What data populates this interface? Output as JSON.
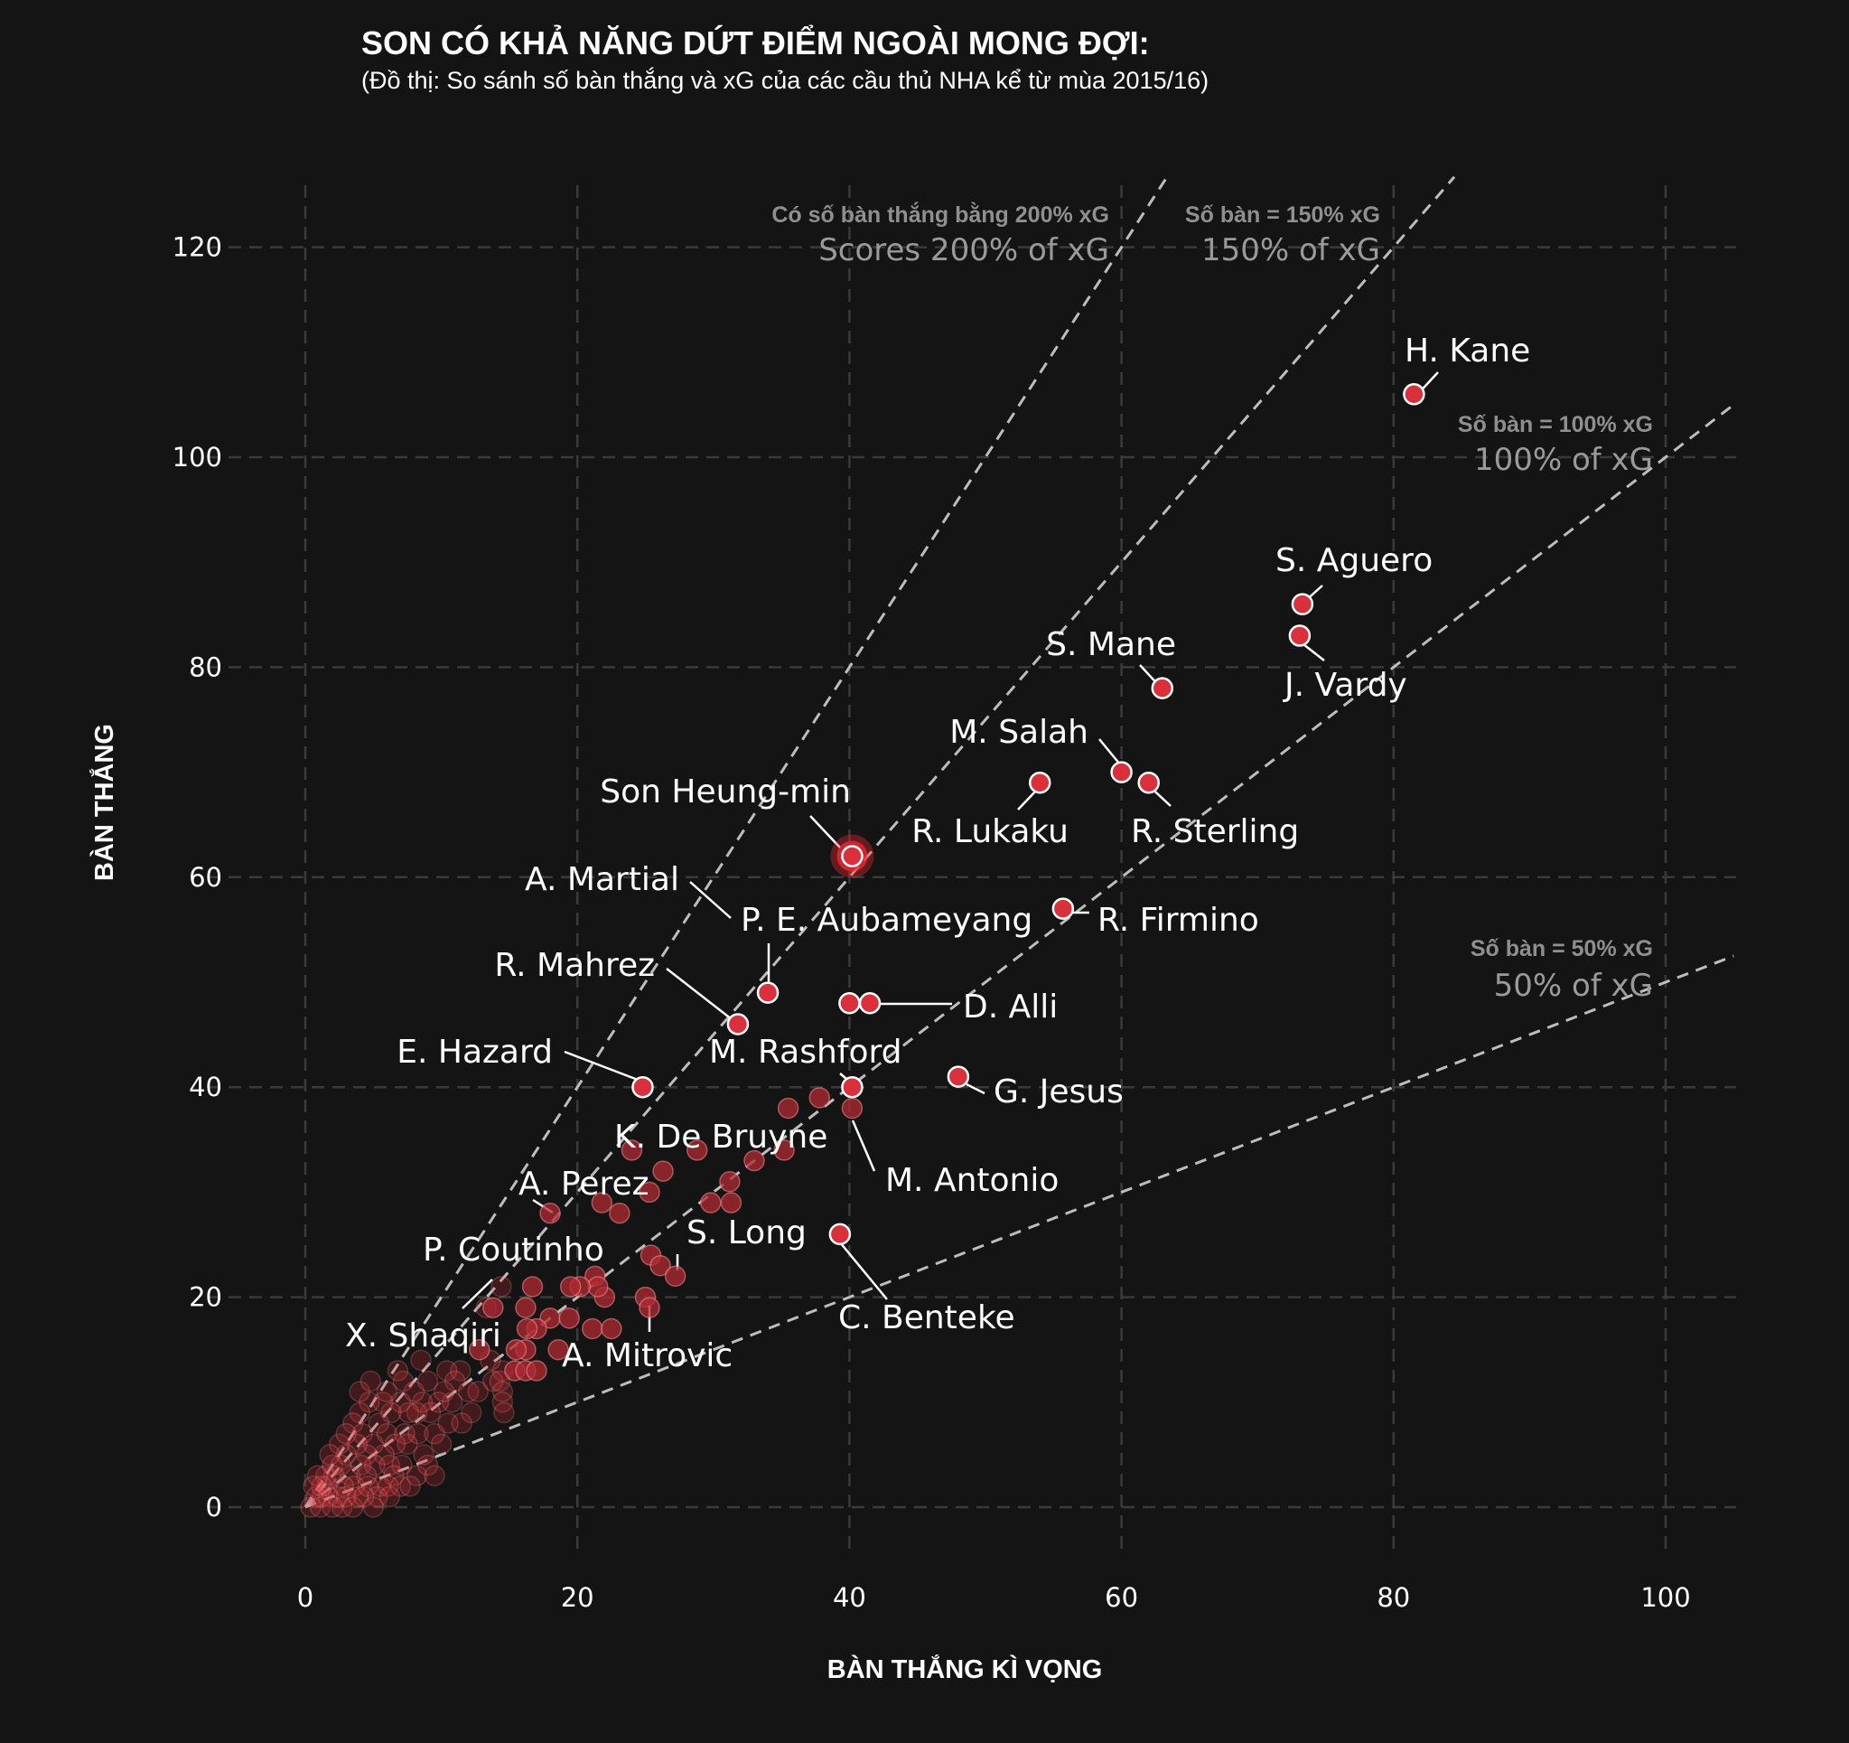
{
  "chart_data": {
    "type": "scatter",
    "title": "SON CÓ KHẢ NĂNG DỨT ĐIỂM NGOÀI MONG ĐỢI:",
    "subtitle": "(Đồ thị: So sánh số bàn thắng và xG của các cầu thủ NHA kể từ mùa 2015/16)",
    "xlabel": "BÀN THẮNG KÌ VỌNG",
    "ylabel": "BÀN THẮNG",
    "xlim": [
      -7,
      105
    ],
    "ylim": [
      -6,
      127
    ],
    "xticks": [
      0,
      20,
      40,
      60,
      80,
      100
    ],
    "yticks": [
      0,
      20,
      40,
      60,
      80,
      100,
      120
    ],
    "grid": true,
    "colors": {
      "background": "#141414",
      "point": "#d9303b",
      "highlight": "#ff2a35"
    },
    "reference_lines": [
      {
        "ratio": 2.0,
        "label_small": "Có số bàn thắng bằng 200% xG",
        "label_big": "Scores 200% of xG"
      },
      {
        "ratio": 1.5,
        "label_small": "Số bàn = 150% xG",
        "label_big": "150% of xG"
      },
      {
        "ratio": 1.0,
        "label_small": "Số bàn = 100% xG",
        "label_big": "100% of xG"
      },
      {
        "ratio": 0.5,
        "label_small": "Số bàn = 50% xG",
        "label_big": "50% of xG"
      }
    ],
    "highlight": "Son Heung-min",
    "labeled_players": [
      {
        "name": "H. Kane",
        "xg": 81.5,
        "goals": 106
      },
      {
        "name": "S. Aguero",
        "xg": 73.3,
        "goals": 86
      },
      {
        "name": "J. Vardy",
        "xg": 73.1,
        "goals": 83
      },
      {
        "name": "S. Mane",
        "xg": 63,
        "goals": 78
      },
      {
        "name": "M. Salah",
        "xg": 60,
        "goals": 70
      },
      {
        "name": "R. Sterling",
        "xg": 62,
        "goals": 69
      },
      {
        "name": "R. Lukaku",
        "xg": 54,
        "goals": 69
      },
      {
        "name": "Son Heung-min",
        "xg": 40.2,
        "goals": 62
      },
      {
        "name": "R. Firmino",
        "xg": 55.7,
        "goals": 57
      },
      {
        "name": "A. Martial",
        "xg": 34,
        "goals": 49
      },
      {
        "name": "P. E. Aubameyang",
        "xg": 40,
        "goals": 48
      },
      {
        "name": "D. Alli",
        "xg": 41.5,
        "goals": 48
      },
      {
        "name": "R. Mahrez",
        "xg": 31.8,
        "goals": 46
      },
      {
        "name": "E. Hazard",
        "xg": 24.8,
        "goals": 40
      },
      {
        "name": "G. Jesus",
        "xg": 48,
        "goals": 41
      },
      {
        "name": "M. Rashford",
        "xg": 40.2,
        "goals": 40
      },
      {
        "name": "M. Antonio",
        "xg": 40.2,
        "goals": 38
      },
      {
        "name": "K. De Bruyne",
        "xg": 24,
        "goals": 34
      },
      {
        "name": "A. Perez",
        "xg": 18,
        "goals": 28
      },
      {
        "name": "C. Benteke",
        "xg": 39.3,
        "goals": 26
      },
      {
        "name": "S. Long",
        "xg": 27.2,
        "goals": 22
      },
      {
        "name": "P. Coutinho",
        "xg": 13.8,
        "goals": 19
      },
      {
        "name": "A. Mitrovic",
        "xg": 25.3,
        "goals": 19
      },
      {
        "name": "X. Shaqiri",
        "xg": 12.8,
        "goals": 15
      }
    ],
    "other_players": [
      [
        35.5,
        38
      ],
      [
        37.8,
        39
      ],
      [
        35.2,
        34
      ],
      [
        33,
        33
      ],
      [
        31.2,
        31
      ],
      [
        31.3,
        29
      ],
      [
        29.8,
        29
      ],
      [
        28.8,
        34
      ],
      [
        26.3,
        32
      ],
      [
        25.3,
        30
      ],
      [
        23.1,
        28
      ],
      [
        21.8,
        29
      ],
      [
        25.4,
        24
      ],
      [
        21.3,
        22
      ],
      [
        26.1,
        23
      ],
      [
        25,
        20
      ],
      [
        22,
        20
      ],
      [
        21.5,
        21
      ],
      [
        20.2,
        21
      ],
      [
        19.5,
        21
      ],
      [
        16.7,
        21
      ],
      [
        14.4,
        21
      ],
      [
        13.3,
        19
      ],
      [
        16.2,
        19
      ],
      [
        18,
        18
      ],
      [
        19.4,
        18
      ],
      [
        17,
        17
      ],
      [
        21.1,
        17
      ],
      [
        22.5,
        17
      ],
      [
        18.6,
        15
      ],
      [
        16.3,
        17
      ],
      [
        16.2,
        15
      ],
      [
        15.5,
        15
      ],
      [
        14.5,
        13
      ],
      [
        13.6,
        14
      ],
      [
        13.8,
        12
      ],
      [
        15.4,
        13
      ],
      [
        16.2,
        13
      ],
      [
        17,
        13
      ],
      [
        11.4,
        13
      ],
      [
        10.4,
        13
      ],
      [
        11,
        12
      ],
      [
        12,
        11
      ],
      [
        12.7,
        11
      ],
      [
        14.3,
        12
      ],
      [
        14.5,
        11
      ],
      [
        14.5,
        10
      ],
      [
        14.6,
        9
      ],
      [
        12.2,
        9
      ],
      [
        10.8,
        10
      ],
      [
        9.8,
        10
      ],
      [
        9.2,
        9
      ],
      [
        8.6,
        10
      ],
      [
        8.2,
        9
      ],
      [
        7.6,
        9
      ],
      [
        7,
        10
      ],
      [
        6.3,
        9
      ],
      [
        5.7,
        10
      ],
      [
        4.7,
        10
      ],
      [
        4,
        9
      ],
      [
        3.5,
        8
      ],
      [
        4.2,
        7
      ],
      [
        5.4,
        8
      ],
      [
        6,
        7
      ],
      [
        7.3,
        7
      ],
      [
        8.3,
        7
      ],
      [
        9.5,
        7
      ],
      [
        10.5,
        8
      ],
      [
        11.5,
        8
      ],
      [
        10,
        6
      ],
      [
        8.7,
        5
      ],
      [
        7.5,
        6
      ],
      [
        6.6,
        6
      ],
      [
        5.8,
        5
      ],
      [
        5,
        6
      ],
      [
        4.5,
        5
      ],
      [
        3.8,
        6
      ],
      [
        3,
        5
      ],
      [
        2.6,
        4
      ],
      [
        3.3,
        3
      ],
      [
        4.1,
        4
      ],
      [
        5.1,
        4
      ],
      [
        6.2,
        4
      ],
      [
        7.1,
        4
      ],
      [
        8.2,
        3
      ],
      [
        9,
        4
      ],
      [
        9.5,
        3
      ],
      [
        6.5,
        3
      ],
      [
        5.5,
        2
      ],
      [
        4.5,
        3
      ],
      [
        3.6,
        2
      ],
      [
        2.8,
        2
      ],
      [
        2.1,
        3
      ],
      [
        1.6,
        2
      ],
      [
        1.2,
        1
      ],
      [
        0.8,
        1
      ],
      [
        1.7,
        1
      ],
      [
        2.4,
        1
      ],
      [
        3,
        1
      ],
      [
        3.9,
        1
      ],
      [
        4.6,
        2
      ],
      [
        5.3,
        1
      ],
      [
        6.1,
        2
      ],
      [
        7,
        2
      ],
      [
        7.7,
        2
      ],
      [
        0.4,
        0
      ],
      [
        1.1,
        0
      ],
      [
        2,
        0
      ],
      [
        2.7,
        0
      ],
      [
        3.5,
        0
      ],
      [
        4.3,
        1
      ],
      [
        5,
        0
      ],
      [
        6.2,
        1
      ],
      [
        1.5,
        3
      ],
      [
        2,
        4
      ],
      [
        2.5,
        6
      ],
      [
        1.2,
        2
      ],
      [
        0.6,
        2
      ],
      [
        0.9,
        3
      ],
      [
        1.8,
        5
      ],
      [
        3,
        7
      ],
      [
        4,
        11
      ],
      [
        4.8,
        12
      ],
      [
        6,
        11
      ],
      [
        7.2,
        12
      ],
      [
        8,
        11
      ],
      [
        9,
        12
      ],
      [
        10.2,
        11
      ],
      [
        6.8,
        13
      ],
      [
        8.5,
        14
      ]
    ]
  }
}
